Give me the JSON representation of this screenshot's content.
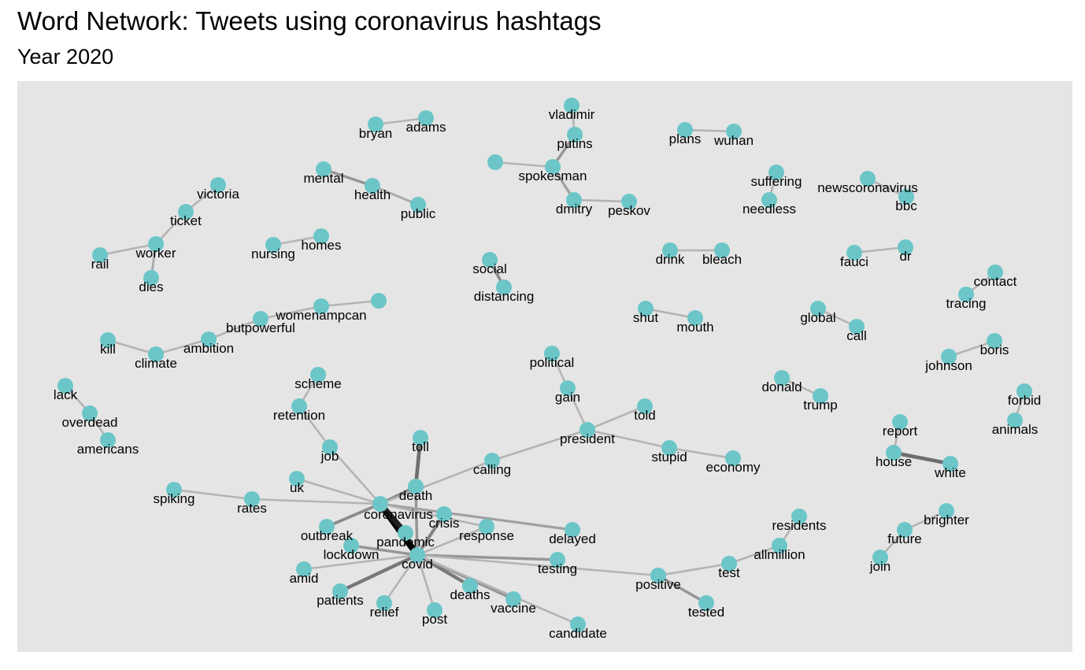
{
  "title": "Word Network: Tweets using coronavirus hashtags",
  "subtitle": "Year 2020",
  "colors": {
    "background": "#e5e5e5",
    "node": "#6cc6c8",
    "edge_light": "#c8c8c8",
    "edge_dark": "#000000"
  },
  "nodes": [
    {
      "id": "coronavirus",
      "label": "coronavirus"
    },
    {
      "id": "covid",
      "label": "covid"
    },
    {
      "id": "death",
      "label": "death"
    },
    {
      "id": "pandemic",
      "label": "pandemic"
    },
    {
      "id": "crisis",
      "label": "crisis"
    },
    {
      "id": "response",
      "label": "response"
    },
    {
      "id": "outbreak",
      "label": "outbreak"
    },
    {
      "id": "lockdown",
      "label": "lockdown"
    },
    {
      "id": "amid",
      "label": "amid"
    },
    {
      "id": "patients",
      "label": "patients"
    },
    {
      "id": "relief",
      "label": "relief"
    },
    {
      "id": "post",
      "label": "post"
    },
    {
      "id": "deaths",
      "label": "deaths"
    },
    {
      "id": "vaccine",
      "label": "vaccine"
    },
    {
      "id": "candidate",
      "label": "candidate"
    },
    {
      "id": "testing",
      "label": "testing"
    },
    {
      "id": "delayed",
      "label": "delayed"
    },
    {
      "id": "toll",
      "label": "toll"
    },
    {
      "id": "job",
      "label": "job"
    },
    {
      "id": "retention",
      "label": "retention"
    },
    {
      "id": "scheme",
      "label": "scheme"
    },
    {
      "id": "uk",
      "label": "uk"
    },
    {
      "id": "rates",
      "label": "rates"
    },
    {
      "id": "spiking",
      "label": "spiking"
    },
    {
      "id": "calling",
      "label": "calling"
    },
    {
      "id": "president",
      "label": "president"
    },
    {
      "id": "gain",
      "label": "gain"
    },
    {
      "id": "political",
      "label": "political"
    },
    {
      "id": "told",
      "label": "told"
    },
    {
      "id": "stupid",
      "label": "stupid"
    },
    {
      "id": "economy",
      "label": "economy"
    },
    {
      "id": "positive",
      "label": "positive"
    },
    {
      "id": "tested",
      "label": "tested"
    },
    {
      "id": "test",
      "label": "test"
    },
    {
      "id": "allmillion",
      "label": "allmillion"
    },
    {
      "id": "residents",
      "label": "residents"
    },
    {
      "id": "bryan",
      "label": "bryan"
    },
    {
      "id": "adams",
      "label": "adams"
    },
    {
      "id": "vladimir",
      "label": "vladimir"
    },
    {
      "id": "putins",
      "label": "putins"
    },
    {
      "id": "spokesman",
      "label": "spokesman"
    },
    {
      "id": "unlabeled",
      "label": ""
    },
    {
      "id": "dmitry",
      "label": "dmitry"
    },
    {
      "id": "peskov",
      "label": "peskov"
    },
    {
      "id": "plans",
      "label": "plans"
    },
    {
      "id": "wuhan",
      "label": "wuhan"
    },
    {
      "id": "suffering",
      "label": "suffering"
    },
    {
      "id": "needless",
      "label": "needless"
    },
    {
      "id": "newscoronavirus",
      "label": "newscoronavirus"
    },
    {
      "id": "bbc",
      "label": "bbc"
    },
    {
      "id": "mental",
      "label": "mental"
    },
    {
      "id": "health",
      "label": "health"
    },
    {
      "id": "public",
      "label": "public"
    },
    {
      "id": "victoria",
      "label": "victoria"
    },
    {
      "id": "ticket",
      "label": "ticket"
    },
    {
      "id": "worker",
      "label": "worker"
    },
    {
      "id": "rail",
      "label": "rail"
    },
    {
      "id": "dies",
      "label": "dies"
    },
    {
      "id": "nursing",
      "label": "nursing"
    },
    {
      "id": "homes",
      "label": "homes"
    },
    {
      "id": "social",
      "label": "social"
    },
    {
      "id": "distancing",
      "label": "distancing"
    },
    {
      "id": "drink",
      "label": "drink"
    },
    {
      "id": "bleach",
      "label": "bleach"
    },
    {
      "id": "fauci",
      "label": "fauci"
    },
    {
      "id": "dr",
      "label": "dr"
    },
    {
      "id": "contact",
      "label": "contact"
    },
    {
      "id": "tracing",
      "label": "tracing"
    },
    {
      "id": "womenampcan",
      "label": "womenampcan"
    },
    {
      "id": "unlabeled2",
      "label": ""
    },
    {
      "id": "butpowerful",
      "label": "butpowerful"
    },
    {
      "id": "ambition",
      "label": "ambition"
    },
    {
      "id": "climate",
      "label": "climate"
    },
    {
      "id": "kill",
      "label": "kill"
    },
    {
      "id": "shut",
      "label": "shut"
    },
    {
      "id": "mouth",
      "label": "mouth"
    },
    {
      "id": "global",
      "label": "global"
    },
    {
      "id": "call",
      "label": "call"
    },
    {
      "id": "johnson",
      "label": "johnson"
    },
    {
      "id": "boris",
      "label": "boris"
    },
    {
      "id": "donald",
      "label": "donald"
    },
    {
      "id": "trump",
      "label": "trump"
    },
    {
      "id": "forbid",
      "label": "forbid"
    },
    {
      "id": "animals",
      "label": "animals"
    },
    {
      "id": "lack",
      "label": "lack"
    },
    {
      "id": "overdead",
      "label": "overdead"
    },
    {
      "id": "americans",
      "label": "americans"
    },
    {
      "id": "report",
      "label": "report"
    },
    {
      "id": "house",
      "label": "house"
    },
    {
      "id": "white",
      "label": "white"
    },
    {
      "id": "brighter",
      "label": "brighter"
    },
    {
      "id": "future",
      "label": "future"
    },
    {
      "id": "join",
      "label": "join"
    }
  ],
  "edges": [
    {
      "source": "coronavirus",
      "target": "covid",
      "weight": 1.0
    },
    {
      "source": "coronavirus",
      "target": "pandemic",
      "weight": 0.85
    },
    {
      "source": "death",
      "target": "toll",
      "weight": 0.45
    },
    {
      "source": "covid",
      "target": "deaths",
      "weight": 0.4
    },
    {
      "source": "covid",
      "target": "patients",
      "weight": 0.4
    },
    {
      "source": "covid",
      "target": "crisis",
      "weight": 0.35
    },
    {
      "source": "house",
      "target": "white",
      "weight": 0.45
    },
    {
      "source": "coronavirus",
      "target": "death",
      "weight": 0.3
    },
    {
      "source": "coronavirus",
      "target": "outbreak",
      "weight": 0.3
    },
    {
      "source": "covid",
      "target": "death",
      "weight": 0.25
    },
    {
      "source": "covid",
      "target": "lockdown",
      "weight": 0.25
    },
    {
      "source": "covid",
      "target": "testing",
      "weight": 0.25
    },
    {
      "source": "covid",
      "target": "vaccine",
      "weight": 0.25
    },
    {
      "source": "coronavirus",
      "target": "delayed",
      "weight": 0.2
    },
    {
      "source": "social",
      "target": "distancing",
      "weight": 0.3
    },
    {
      "source": "putins",
      "target": "spokesman",
      "weight": 0.25
    },
    {
      "source": "spokesman",
      "target": "dmitry",
      "weight": 0.2
    },
    {
      "source": "positive",
      "target": "tested",
      "weight": 0.25
    },
    {
      "source": "mental",
      "target": "health",
      "weight": 0.25
    },
    {
      "source": "coronavirus",
      "target": "job",
      "weight": 0.1
    },
    {
      "source": "job",
      "target": "retention",
      "weight": 0.1
    },
    {
      "source": "retention",
      "target": "scheme",
      "weight": 0.1
    },
    {
      "source": "coronavirus",
      "target": "uk",
      "weight": 0.1
    },
    {
      "source": "coronavirus",
      "target": "rates",
      "weight": 0.1
    },
    {
      "source": "rates",
      "target": "spiking",
      "weight": 0.1
    },
    {
      "source": "coronavirus",
      "target": "calling",
      "weight": 0.1
    },
    {
      "source": "calling",
      "target": "president",
      "weight": 0.1
    },
    {
      "source": "president",
      "target": "gain",
      "weight": 0.1
    },
    {
      "source": "gain",
      "target": "political",
      "weight": 0.1
    },
    {
      "source": "president",
      "target": "told",
      "weight": 0.1
    },
    {
      "source": "president",
      "target": "stupid",
      "weight": 0.1
    },
    {
      "source": "stupid",
      "target": "economy",
      "weight": 0.1
    },
    {
      "source": "coronavirus",
      "target": "response",
      "weight": 0.1
    },
    {
      "source": "covid",
      "target": "response",
      "weight": 0.1
    },
    {
      "source": "covid",
      "target": "amid",
      "weight": 0.1
    },
    {
      "source": "covid",
      "target": "relief",
      "weight": 0.1
    },
    {
      "source": "covid",
      "target": "post",
      "weight": 0.1
    },
    {
      "source": "covid",
      "target": "candidate",
      "weight": 0.1
    },
    {
      "source": "covid",
      "target": "positive",
      "weight": 0.1
    },
    {
      "source": "positive",
      "target": "test",
      "weight": 0.1
    },
    {
      "source": "test",
      "target": "allmillion",
      "weight": 0.1
    },
    {
      "source": "allmillion",
      "target": "residents",
      "weight": 0.1
    },
    {
      "source": "bryan",
      "target": "adams",
      "weight": 0.1
    },
    {
      "source": "vladimir",
      "target": "putins",
      "weight": 0.1
    },
    {
      "source": "unlabeled",
      "target": "spokesman",
      "weight": 0.1
    },
    {
      "source": "dmitry",
      "target": "peskov",
      "weight": 0.1
    },
    {
      "source": "plans",
      "target": "wuhan",
      "weight": 0.1
    },
    {
      "source": "suffering",
      "target": "needless",
      "weight": 0.1
    },
    {
      "source": "newscoronavirus",
      "target": "bbc",
      "weight": 0.1
    },
    {
      "source": "health",
      "target": "public",
      "weight": 0.15
    },
    {
      "source": "victoria",
      "target": "ticket",
      "weight": 0.1
    },
    {
      "source": "ticket",
      "target": "worker",
      "weight": 0.1
    },
    {
      "source": "rail",
      "target": "worker",
      "weight": 0.1
    },
    {
      "source": "worker",
      "target": "dies",
      "weight": 0.15
    },
    {
      "source": "nursing",
      "target": "homes",
      "weight": 0.1
    },
    {
      "source": "drink",
      "target": "bleach",
      "weight": 0.1
    },
    {
      "source": "fauci",
      "target": "dr",
      "weight": 0.1
    },
    {
      "source": "contact",
      "target": "tracing",
      "weight": 0.1
    },
    {
      "source": "womenampcan",
      "target": "unlabeled2",
      "weight": 0.1
    },
    {
      "source": "butpowerful",
      "target": "womenampcan",
      "weight": 0.1
    },
    {
      "source": "ambition",
      "target": "butpowerful",
      "weight": 0.1
    },
    {
      "source": "climate",
      "target": "ambition",
      "weight": 0.1
    },
    {
      "source": "kill",
      "target": "climate",
      "weight": 0.1
    },
    {
      "source": "shut",
      "target": "mouth",
      "weight": 0.1
    },
    {
      "source": "global",
      "target": "call",
      "weight": 0.1
    },
    {
      "source": "johnson",
      "target": "boris",
      "weight": 0.1
    },
    {
      "source": "donald",
      "target": "trump",
      "weight": 0.1
    },
    {
      "source": "forbid",
      "target": "animals",
      "weight": 0.1
    },
    {
      "source": "lack",
      "target": "overdead",
      "weight": 0.1
    },
    {
      "source": "overdead",
      "target": "americans",
      "weight": 0.1
    },
    {
      "source": "report",
      "target": "house",
      "weight": 0.1
    },
    {
      "source": "brighter",
      "target": "future",
      "weight": 0.1
    },
    {
      "source": "future",
      "target": "join",
      "weight": 0.1
    }
  ]
}
